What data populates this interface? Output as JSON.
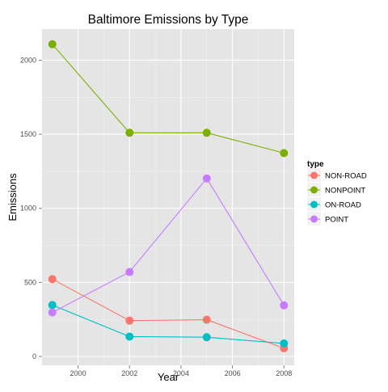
{
  "chart_data": {
    "type": "line",
    "title": "Baltimore Emissions by Type",
    "xlabel": "Year",
    "ylabel": "Emissions",
    "x": [
      1999,
      2002,
      2005,
      2008
    ],
    "xlim": [
      1998.6,
      2008.4
    ],
    "ylim": [
      -60,
      2210
    ],
    "x_ticks": [
      2000,
      2002,
      2004,
      2006,
      2008
    ],
    "y_ticks": [
      0,
      500,
      1000,
      1500,
      2000
    ],
    "x_tick_labels": [
      "2000",
      "2002",
      "2004",
      "2006",
      "2008"
    ],
    "y_tick_labels": [
      "0",
      "500",
      "1000",
      "1500",
      "2000"
    ],
    "grid": true,
    "legend": {
      "title": "type",
      "placement": "right"
    },
    "series": [
      {
        "name": "NON-ROAD",
        "color": "#F8766D",
        "values": [
          522,
          242,
          248,
          55
        ]
      },
      {
        "name": "NONPOINT",
        "color": "#7CAE00",
        "values": [
          2108,
          1510,
          1510,
          1373
        ]
      },
      {
        "name": "ON-ROAD",
        "color": "#00BFC4",
        "values": [
          347,
          134,
          130,
          88
        ]
      },
      {
        "name": "POINT",
        "color": "#C77CFF",
        "values": [
          297,
          570,
          1202,
          345
        ]
      }
    ]
  }
}
